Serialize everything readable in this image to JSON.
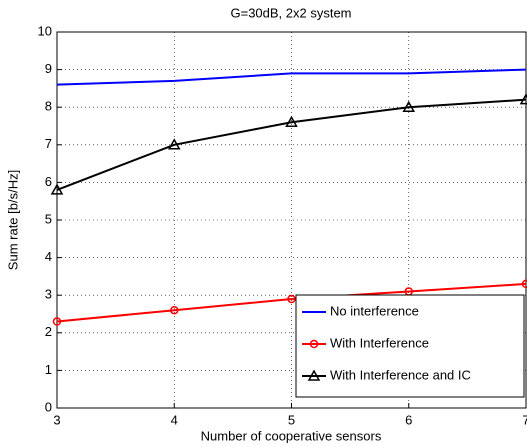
{
  "chart_data": {
    "type": "line",
    "title": "G=30dB, 2x2 system",
    "xlabel": "Number of cooperative sensors",
    "ylabel": "Sum rate [b/s/Hz]",
    "x": [
      3,
      4,
      5,
      6,
      7
    ],
    "xlim": [
      3,
      7
    ],
    "xticks": [
      3,
      4,
      5,
      6,
      7
    ],
    "ylim": [
      0,
      10
    ],
    "yticks": [
      0,
      1,
      2,
      3,
      4,
      5,
      6,
      7,
      8,
      9,
      10
    ],
    "grid": true,
    "legend": "lower right",
    "series": [
      {
        "name": "No interference",
        "color": "#0000ff",
        "marker": "none",
        "values": [
          8.6,
          8.7,
          8.9,
          8.9,
          9.0
        ]
      },
      {
        "name": "With Interference",
        "color": "#ff0000",
        "marker": "circle",
        "values": [
          2.3,
          2.6,
          2.9,
          3.1,
          3.3
        ]
      },
      {
        "name": "With Interference and IC",
        "color": "#000000",
        "marker": "triangle",
        "values": [
          5.8,
          7.0,
          7.6,
          8.0,
          8.2
        ]
      }
    ]
  }
}
